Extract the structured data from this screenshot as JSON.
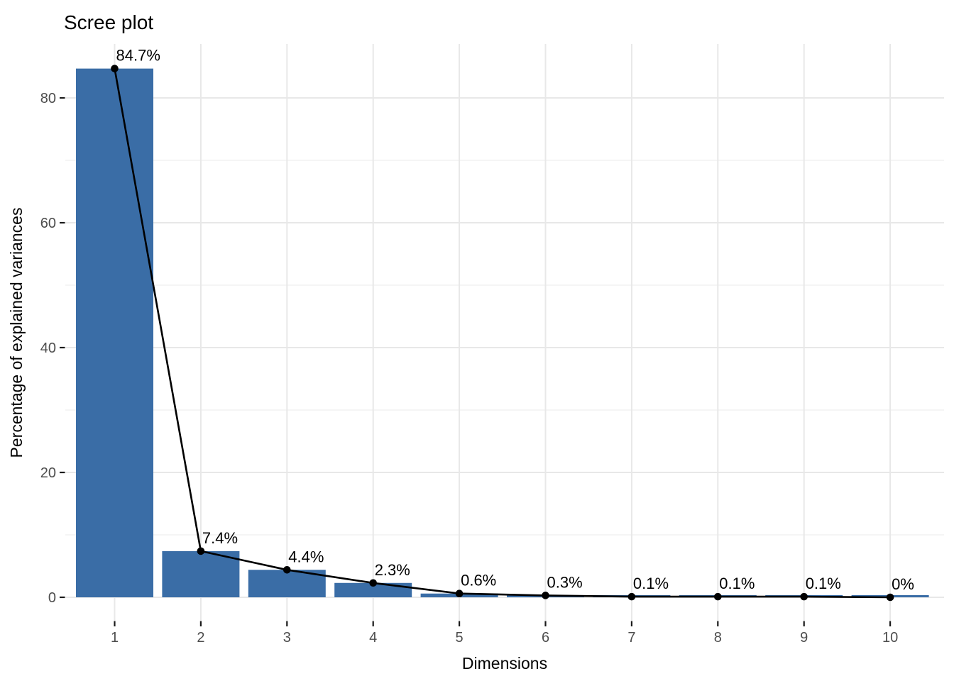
{
  "figure": {
    "background": "#FFFFFF"
  },
  "chart_data": {
    "type": "bar",
    "overlay": "line-with-points",
    "title": "Scree plot",
    "xlabel": "Dimensions",
    "ylabel": "Percentage of explained variances",
    "categories": [
      "1",
      "2",
      "3",
      "4",
      "5",
      "6",
      "7",
      "8",
      "9",
      "10"
    ],
    "values": [
      84.7,
      7.4,
      4.4,
      2.3,
      0.6,
      0.3,
      0.1,
      0.1,
      0.1,
      0
    ],
    "point_labels": [
      "84.7%",
      "7.4%",
      "4.4%",
      "2.3%",
      "0.6%",
      "0.3%",
      "0.1%",
      "0.1%",
      "0.1%",
      "0%"
    ],
    "y_ticks": [
      0,
      20,
      40,
      60,
      80
    ],
    "y_minor_gridlines": [
      10,
      30,
      50,
      70
    ],
    "ylim": [
      -4.2,
      88.9
    ],
    "grid": "horizontal major+minor, vertical major only",
    "legend": "none",
    "colors": {
      "bar_fill": "#3A6DA6",
      "line": "#000000",
      "point": "#000000",
      "grid_major": "#E8E8E8",
      "grid_minor": "#F2F2F2",
      "tick_mark": "#1A1A1A",
      "tick_label": "#4D4D4D",
      "text": "#000000",
      "background": "#FFFFFF"
    }
  }
}
